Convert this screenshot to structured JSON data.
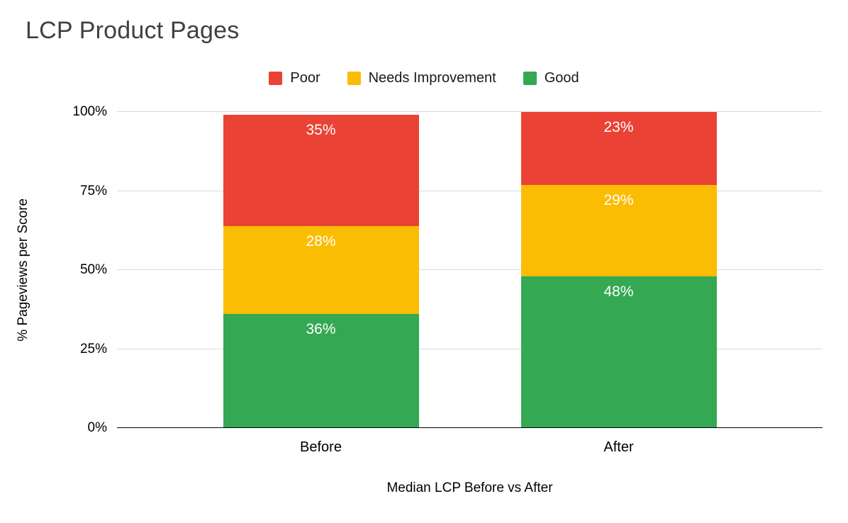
{
  "chart_data": {
    "type": "bar",
    "stacked": true,
    "title": "LCP Product Pages",
    "xlabel": "Median LCP Before vs After",
    "ylabel": "% Pageviews per Score",
    "categories": [
      "Before",
      "After"
    ],
    "series": [
      {
        "name": "Poor",
        "color": "#EA4335",
        "values": [
          35,
          23
        ],
        "value_labels": [
          "35%",
          "23%"
        ]
      },
      {
        "name": "Needs Improvement",
        "color": "#FBBC04",
        "values": [
          28,
          29
        ],
        "value_labels": [
          "28%",
          "29%"
        ]
      },
      {
        "name": "Good",
        "color": "#34A853",
        "values": [
          36,
          48
        ],
        "value_labels": [
          "36%",
          "48%"
        ]
      }
    ],
    "y_ticks": [
      {
        "label": "0%",
        "value": 0
      },
      {
        "label": "25%",
        "value": 25
      },
      {
        "label": "50%",
        "value": 50
      },
      {
        "label": "75%",
        "value": 75
      },
      {
        "label": "100%",
        "value": 100
      }
    ],
    "ylim": [
      0,
      100
    ],
    "grid": true,
    "legend_position": "top",
    "colors": {
      "title_text": "#404040",
      "gridline": "#d9d9d9",
      "baseline": "#000000",
      "data_label_text": "#ffffff"
    }
  }
}
